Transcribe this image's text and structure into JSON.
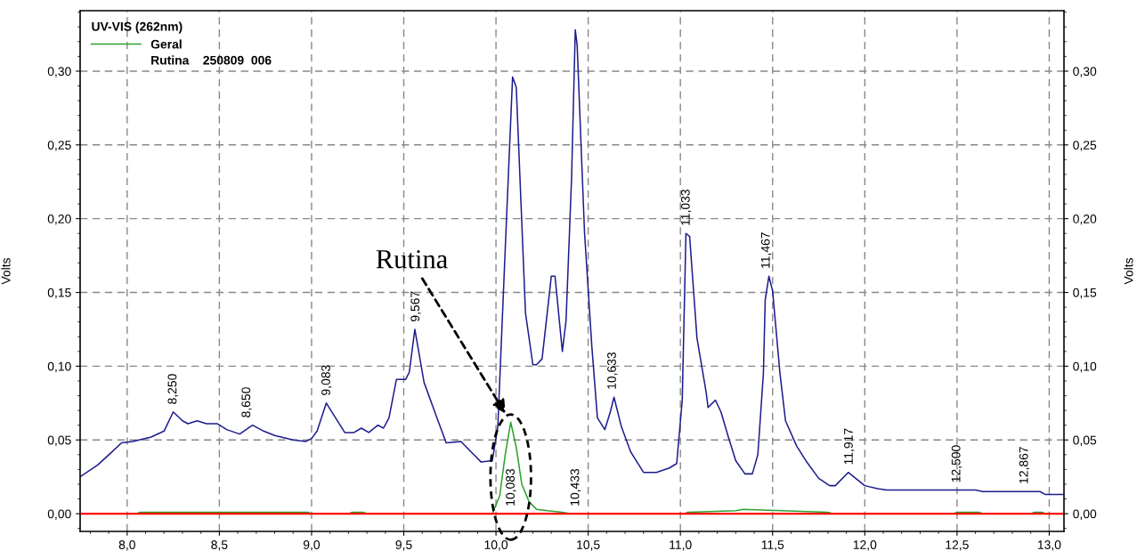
{
  "chart_data": {
    "type": "line",
    "ylabel": "Volts",
    "y2label": "Volts",
    "legend_title": "UV-VIS (262nm)",
    "xlim": [
      7.745,
      13.08
    ],
    "xticks": [
      {
        "value": 8.0,
        "label": "8,0"
      },
      {
        "value": 8.5,
        "label": "8,5"
      },
      {
        "value": 9.0,
        "label": "9,0"
      },
      {
        "value": 9.5,
        "label": "9,5"
      },
      {
        "value": 10.0,
        "label": "10,0"
      },
      {
        "value": 10.5,
        "label": "10,5"
      },
      {
        "value": 11.0,
        "label": "11,0"
      },
      {
        "value": 11.5,
        "label": "11,5"
      },
      {
        "value": 12.0,
        "label": "12,0"
      },
      {
        "value": 12.5,
        "label": "12,5"
      },
      {
        "value": 13.0,
        "label": "13,0"
      }
    ],
    "ylim": [
      -0.012,
      0.341
    ],
    "yticks": [
      {
        "value": 0,
        "label": "0,00"
      },
      {
        "value": 0.05,
        "label": "0,05"
      },
      {
        "value": 0.1,
        "label": "0,10"
      },
      {
        "value": 0.15,
        "label": "0,15"
      },
      {
        "value": 0.2,
        "label": "0,20"
      },
      {
        "value": 0.25,
        "label": "0,25"
      },
      {
        "value": 0.3,
        "label": "0,30"
      }
    ],
    "y2lim": [
      -0.012,
      0.341
    ],
    "y2ticks": [
      {
        "value": 0,
        "label": "0,00"
      },
      {
        "value": 0.05,
        "label": "0,05"
      },
      {
        "value": 0.1,
        "label": "0,10"
      },
      {
        "value": 0.15,
        "label": "0,15"
      },
      {
        "value": 0.2,
        "label": "0,20"
      },
      {
        "value": 0.25,
        "label": "0,25"
      },
      {
        "value": 0.3,
        "label": "0,30"
      }
    ],
    "grid": true,
    "legend": "top left",
    "marker": "none",
    "line_style": "solid",
    "series": [
      {
        "color": "#1c1c8f",
        "x": [
          7.745,
          7.84,
          7.91,
          7.97,
          8.03,
          8.13,
          8.2,
          8.25,
          8.3,
          8.33,
          8.38,
          8.43,
          8.49,
          8.54,
          8.61,
          8.68,
          8.74,
          8.8,
          8.9,
          8.97,
          9.0,
          9.03,
          9.08,
          9.13,
          9.18,
          9.23,
          9.27,
          9.31,
          9.36,
          9.39,
          9.42,
          9.46,
          9.51,
          9.53,
          9.56,
          9.61,
          9.68,
          9.73,
          9.81,
          9.88,
          9.92,
          9.98,
          10.01,
          10.05,
          10.09,
          10.11,
          10.16,
          10.2,
          10.22,
          10.25,
          10.3,
          10.32,
          10.36,
          10.38,
          10.41,
          10.43,
          10.44,
          10.48,
          10.52,
          10.55,
          10.59,
          10.62,
          10.64,
          10.68,
          10.73,
          10.8,
          10.87,
          10.94,
          10.98,
          11.01,
          11.03,
          11.05,
          11.09,
          11.14,
          11.15,
          11.19,
          11.22,
          11.26,
          11.3,
          11.35,
          11.39,
          11.42,
          11.45,
          11.46,
          11.48,
          11.5,
          11.54,
          11.57,
          11.63,
          11.68,
          11.75,
          11.81,
          11.84,
          11.91,
          12.0,
          12.07,
          12.12,
          12.6,
          12.64,
          12.95,
          12.98,
          13.08
        ],
        "values": [
          0.025,
          0.033,
          0.041,
          0.048,
          0.049,
          0.052,
          0.056,
          0.069,
          0.063,
          0.061,
          0.063,
          0.061,
          0.061,
          0.057,
          0.054,
          0.06,
          0.056,
          0.053,
          0.05,
          0.049,
          0.051,
          0.056,
          0.075,
          0.065,
          0.055,
          0.055,
          0.058,
          0.055,
          0.06,
          0.058,
          0.065,
          0.091,
          0.091,
          0.096,
          0.125,
          0.089,
          0.065,
          0.048,
          0.049,
          0.04,
          0.035,
          0.036,
          0.059,
          0.179,
          0.296,
          0.289,
          0.136,
          0.101,
          0.101,
          0.105,
          0.161,
          0.161,
          0.11,
          0.131,
          0.228,
          0.328,
          0.318,
          0.191,
          0.113,
          0.065,
          0.057,
          0.069,
          0.079,
          0.059,
          0.042,
          0.028,
          0.028,
          0.031,
          0.034,
          0.077,
          0.19,
          0.188,
          0.119,
          0.082,
          0.072,
          0.077,
          0.069,
          0.052,
          0.036,
          0.027,
          0.027,
          0.04,
          0.095,
          0.145,
          0.161,
          0.151,
          0.095,
          0.063,
          0.046,
          0.036,
          0.024,
          0.019,
          0.019,
          0.028,
          0.019,
          0.017,
          0.016,
          0.016,
          0.015,
          0.015,
          0.013,
          0.013
        ]
      },
      {
        "name": "Geral",
        "color": "#2ca02c",
        "x": [
          7.745,
          8.05,
          8.07,
          8.98,
          9.0,
          9.2,
          9.22,
          9.28,
          9.3,
          9.98,
          10.02,
          10.05,
          10.08,
          10.11,
          10.14,
          10.18,
          10.22,
          10.28,
          10.36,
          10.4,
          11.02,
          11.04,
          11.3,
          11.34,
          11.8,
          11.83,
          12.48,
          12.5,
          12.62,
          12.64,
          12.9,
          12.92,
          12.96,
          12.98,
          13.08
        ],
        "values": [
          0,
          0,
          0.001,
          0.001,
          0,
          0,
          0.001,
          0.001,
          0,
          0,
          0.012,
          0.04,
          0.062,
          0.045,
          0.02,
          0.008,
          0.003,
          0.002,
          0.001,
          0,
          0,
          0.001,
          0.002,
          0.003,
          0.001,
          0,
          0,
          0.001,
          0.001,
          0,
          0,
          0.001,
          0.001,
          0,
          0
        ]
      }
    ],
    "ref_lines": [
      {
        "axis": "y",
        "value": 0,
        "color": "#ff0000",
        "line_style": "solid"
      }
    ],
    "annotations": [
      {
        "text": "8,250",
        "x": 8.25,
        "y": 0.069
      },
      {
        "text": "8,650",
        "x": 8.65,
        "y": 0.06
      },
      {
        "text": "9,083",
        "x": 9.083,
        "y": 0.075
      },
      {
        "text": "9,567",
        "x": 9.567,
        "y": 0.125
      },
      {
        "text": "10,083",
        "x": 10.083,
        "y": 0
      },
      {
        "text": "10,433",
        "x": 10.433,
        "y": 0
      },
      {
        "text": "10,633",
        "x": 10.633,
        "y": 0.079
      },
      {
        "text": "11,033",
        "x": 11.033,
        "y": 0.19
      },
      {
        "text": "11,467",
        "x": 11.467,
        "y": 0.161
      },
      {
        "text": "11,917",
        "x": 11.917,
        "y": 0.028
      },
      {
        "text": "12,500",
        "x": 12.5,
        "y": 0.016
      },
      {
        "text": "12,867",
        "x": 12.867,
        "y": 0.015
      },
      "Rutina",
      "Rutina    250809  006"
    ]
  }
}
